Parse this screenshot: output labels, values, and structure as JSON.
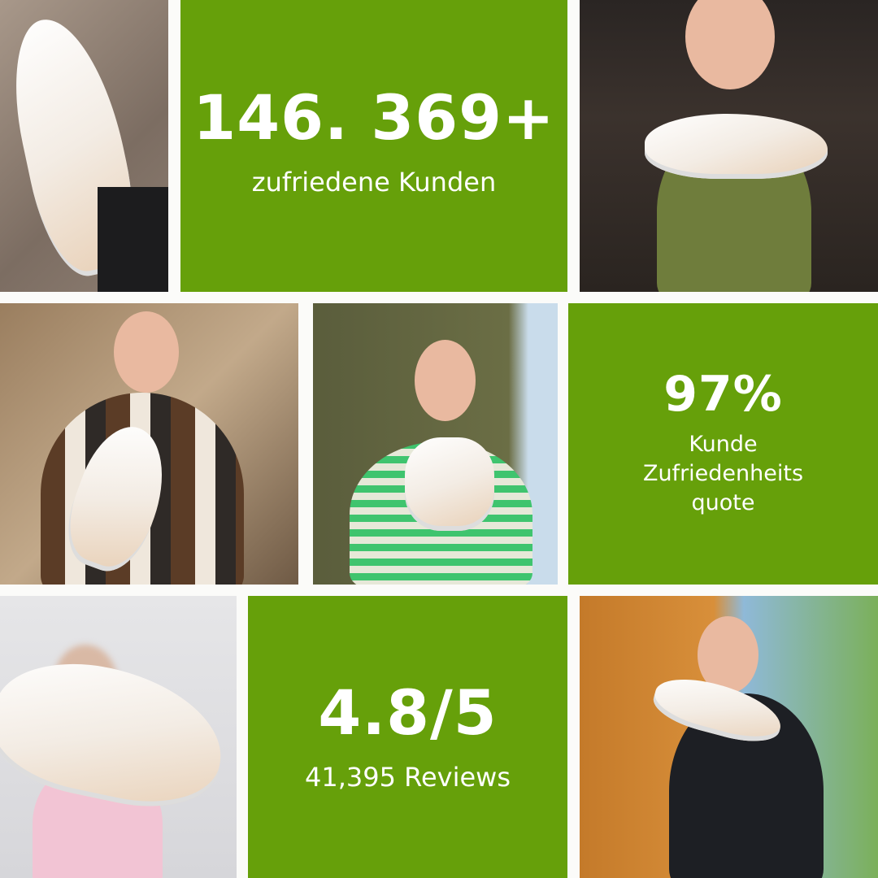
{
  "colors": {
    "accent_green": "#66a00a",
    "text": "#ffffff",
    "background": "#fbfbf9"
  },
  "stats": [
    {
      "value": "146. 369+",
      "label": "zufriedene Kunden"
    },
    {
      "value": "97%",
      "label_lines": [
        "Kunde",
        "Zufriedenheits",
        "quote"
      ]
    },
    {
      "value": "4.8/5",
      "label": "41,395 Reviews"
    }
  ]
}
